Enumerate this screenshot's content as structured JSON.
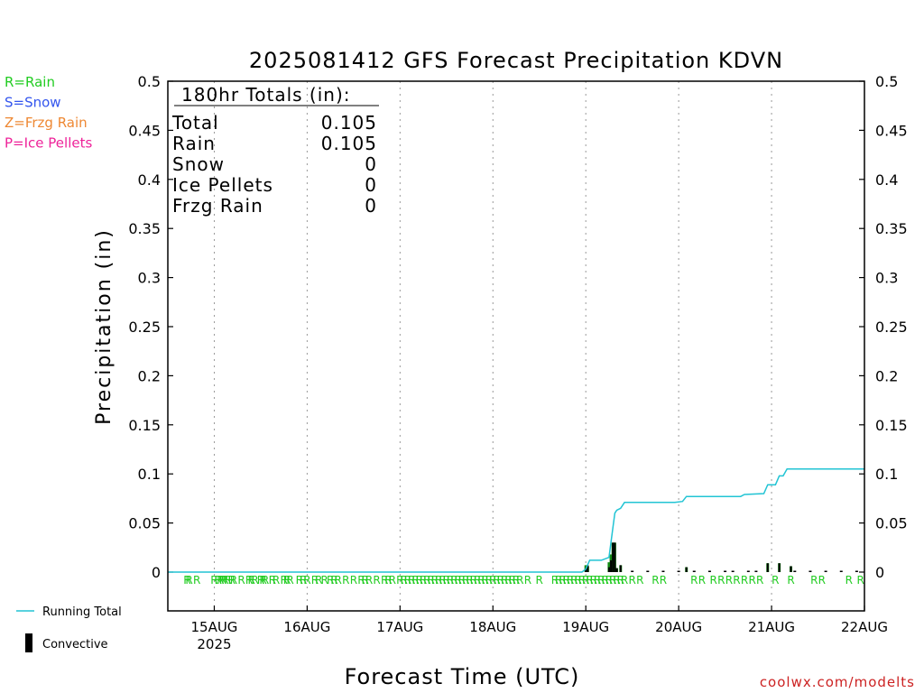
{
  "chart_data": {
    "type": "bar",
    "title": "2025081412 GFS Forecast Precipitation KDVN",
    "xlabel": "Forecast Time (UTC)",
    "ylabel": "Precipitation (in)",
    "ylim": [
      0,
      0.5
    ],
    "yticks": [
      "0",
      "0.05",
      "0.1",
      "0.15",
      "0.2",
      "0.25",
      "0.3",
      "0.35",
      "0.4",
      "0.45",
      "0.5"
    ],
    "x_start_hour": 0,
    "x_end_hour": 180,
    "date_ticks": [
      {
        "hour": 12,
        "label": "15AUG",
        "sub": "2025"
      },
      {
        "hour": 36,
        "label": "16AUG",
        "sub": ""
      },
      {
        "hour": 60,
        "label": "17AUG",
        "sub": ""
      },
      {
        "hour": 84,
        "label": "18AUG",
        "sub": ""
      },
      {
        "hour": 108,
        "label": "19AUG",
        "sub": ""
      },
      {
        "hour": 132,
        "label": "20AUG",
        "sub": ""
      },
      {
        "hour": 156,
        "label": "21AUG",
        "sub": ""
      },
      {
        "hour": 180,
        "label": "22AUG",
        "sub": ""
      }
    ],
    "grid": true,
    "precip_type_key": [
      {
        "label": "R=Rain",
        "color": "#22cc22"
      },
      {
        "label": "S=Snow",
        "color": "#3355ee"
      },
      {
        "label": "Z=Frzg Rain",
        "color": "#ee8833"
      },
      {
        "label": "P=Ice Pellets",
        "color": "#ee2299"
      }
    ],
    "totals": {
      "heading": "180hr Totals (in):",
      "rows": [
        {
          "label": "Total",
          "value": "0.105"
        },
        {
          "label": "Rain",
          "value": "0.105"
        },
        {
          "label": "Snow",
          "value": "0"
        },
        {
          "label": "Ice Pellets",
          "value": "0"
        },
        {
          "label": "Frzg Rain",
          "value": "0"
        }
      ]
    },
    "series": [
      {
        "name": "Running Total",
        "type": "line",
        "color": "#22c4d4",
        "points": [
          [
            0,
            0
          ],
          [
            107,
            0
          ],
          [
            108,
            0.003
          ],
          [
            109,
            0.012
          ],
          [
            110,
            0.012
          ],
          [
            112,
            0.012
          ],
          [
            114,
            0.015
          ],
          [
            115,
            0.045
          ],
          [
            115.5,
            0.06
          ],
          [
            116,
            0.063
          ],
          [
            117,
            0.065
          ],
          [
            118,
            0.071
          ],
          [
            122,
            0.071
          ],
          [
            131,
            0.071
          ],
          [
            133,
            0.072
          ],
          [
            134,
            0.077
          ],
          [
            138,
            0.077
          ],
          [
            148,
            0.077
          ],
          [
            149,
            0.079
          ],
          [
            154,
            0.08
          ],
          [
            155,
            0.089
          ],
          [
            157,
            0.089
          ],
          [
            158,
            0.098
          ],
          [
            159,
            0.098
          ],
          [
            160,
            0.105
          ],
          [
            180,
            0.105
          ]
        ]
      },
      {
        "name": "Convective",
        "type": "bar",
        "color": "#000000",
        "points": [
          [
            108,
            0.004
          ],
          [
            108.5,
            0.007
          ],
          [
            114,
            0.005
          ],
          [
            114.5,
            0.012
          ],
          [
            115,
            0.03
          ],
          [
            115.5,
            0.03
          ],
          [
            116,
            0.004
          ],
          [
            117,
            0.007
          ],
          [
            134,
            0.005
          ],
          [
            155,
            0.009
          ],
          [
            158,
            0.009
          ],
          [
            161,
            0.006
          ]
        ]
      },
      {
        "name": "Total bars",
        "type": "bar",
        "color": "#118811",
        "points": [
          [
            108,
            0.007
          ],
          [
            108.5,
            0.006
          ],
          [
            114,
            0.01
          ],
          [
            114.5,
            0.018
          ],
          [
            115,
            0.03
          ],
          [
            115.5,
            0.03
          ],
          [
            116,
            0.004
          ],
          [
            117,
            0.007
          ],
          [
            134,
            0.005
          ],
          [
            155,
            0.009
          ],
          [
            158,
            0.009
          ],
          [
            161,
            0.006
          ]
        ]
      }
    ],
    "rain_marker_hours": [
      5,
      5.5,
      7.5,
      12,
      13,
      13.6,
      14.2,
      14.8,
      15.5,
      16.5,
      17,
      19,
      21,
      21.6,
      22.5,
      24,
      24.6,
      25.2,
      27,
      28,
      30,
      30.8,
      31.6,
      34,
      35,
      36,
      38,
      39,
      40.5,
      42,
      43,
      44,
      46,
      48,
      50,
      51,
      52,
      54,
      56,
      57,
      58,
      60,
      61,
      62,
      63,
      64,
      65,
      66,
      67,
      68,
      69,
      70,
      71,
      72,
      73,
      74,
      75,
      76,
      77,
      78,
      79,
      80,
      81,
      82,
      83,
      84,
      85,
      86,
      87,
      88,
      89,
      90,
      91,
      93,
      96,
      100,
      101,
      102,
      103,
      104,
      105,
      106,
      107,
      108,
      109,
      110,
      111,
      112,
      113,
      114,
      115,
      116,
      117,
      118,
      120,
      122,
      126,
      128,
      136,
      138,
      141,
      143,
      145,
      147,
      149,
      151,
      153,
      157,
      161,
      167,
      169,
      176,
      179
    ],
    "rain_marker_label": "R",
    "bottom_legend": [
      {
        "label": "Running Total",
        "color": "#22c4d4"
      },
      {
        "label": "Convective",
        "color": "#000000"
      }
    ]
  },
  "credit": "coolwx.com/modelts"
}
